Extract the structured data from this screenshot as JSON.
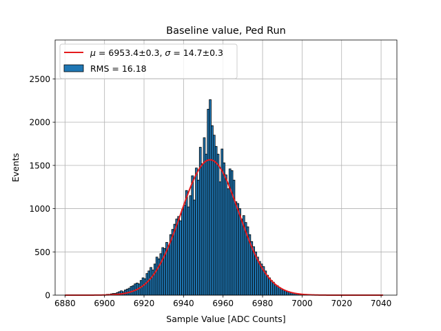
{
  "chart_data": {
    "type": "bar",
    "title": "Baseline value, Ped Run",
    "xlabel": "Sample Value [ADC Counts]",
    "ylabel": "Events",
    "xlim": [
      6875,
      7048
    ],
    "ylim": [
      0,
      2950
    ],
    "xticks": [
      6880,
      6900,
      6920,
      6940,
      6960,
      6980,
      7000,
      7020,
      7040
    ],
    "yticks": [
      0,
      500,
      1000,
      1500,
      2000,
      2500
    ],
    "grid": true,
    "legend_position": "top-left",
    "bin_width": 1,
    "histogram": {
      "name": "RMS = 16.18",
      "color": "#1f77b4",
      "edgecolor": "#000000",
      "bins": [
        [
          6899,
          5
        ],
        [
          6900,
          5
        ],
        [
          6901,
          10
        ],
        [
          6902,
          10
        ],
        [
          6903,
          15
        ],
        [
          6904,
          20
        ],
        [
          6905,
          20
        ],
        [
          6906,
          30
        ],
        [
          6907,
          40
        ],
        [
          6908,
          50
        ],
        [
          6909,
          40
        ],
        [
          6910,
          60
        ],
        [
          6911,
          70
        ],
        [
          6912,
          80
        ],
        [
          6913,
          100
        ],
        [
          6914,
          110
        ],
        [
          6915,
          130
        ],
        [
          6916,
          140
        ],
        [
          6917,
          130
        ],
        [
          6918,
          170
        ],
        [
          6919,
          200
        ],
        [
          6920,
          190
        ],
        [
          6921,
          250
        ],
        [
          6922,
          280
        ],
        [
          6923,
          320
        ],
        [
          6924,
          290
        ],
        [
          6925,
          360
        ],
        [
          6926,
          440
        ],
        [
          6927,
          420
        ],
        [
          6928,
          480
        ],
        [
          6929,
          550
        ],
        [
          6930,
          540
        ],
        [
          6931,
          610
        ],
        [
          6932,
          570
        ],
        [
          6933,
          700
        ],
        [
          6934,
          760
        ],
        [
          6935,
          820
        ],
        [
          6936,
          880
        ],
        [
          6937,
          910
        ],
        [
          6938,
          860
        ],
        [
          6939,
          990
        ],
        [
          6940,
          1040
        ],
        [
          6941,
          1210
        ],
        [
          6942,
          1020
        ],
        [
          6943,
          1150
        ],
        [
          6944,
          1380
        ],
        [
          6945,
          1100
        ],
        [
          6946,
          1470
        ],
        [
          6947,
          1330
        ],
        [
          6948,
          1710
        ],
        [
          6949,
          1520
        ],
        [
          6950,
          1820
        ],
        [
          6951,
          1630
        ],
        [
          6952,
          2150
        ],
        [
          6953,
          2260
        ],
        [
          6954,
          1960
        ],
        [
          6955,
          1850
        ],
        [
          6956,
          1720
        ],
        [
          6957,
          1630
        ],
        [
          6958,
          1310
        ],
        [
          6959,
          1690
        ],
        [
          6960,
          1530
        ],
        [
          6961,
          1390
        ],
        [
          6962,
          1230
        ],
        [
          6963,
          1460
        ],
        [
          6964,
          1440
        ],
        [
          6965,
          1330
        ],
        [
          6966,
          1080
        ],
        [
          6967,
          1060
        ],
        [
          6968,
          1000
        ],
        [
          6969,
          880
        ],
        [
          6970,
          920
        ],
        [
          6971,
          840
        ],
        [
          6972,
          790
        ],
        [
          6973,
          700
        ],
        [
          6974,
          620
        ],
        [
          6975,
          560
        ],
        [
          6976,
          500
        ],
        [
          6977,
          440
        ],
        [
          6978,
          390
        ],
        [
          6979,
          360
        ],
        [
          6980,
          330
        ],
        [
          6981,
          280
        ],
        [
          6982,
          230
        ],
        [
          6983,
          200
        ],
        [
          6984,
          170
        ],
        [
          6985,
          150
        ],
        [
          6986,
          120
        ],
        [
          6987,
          110
        ],
        [
          6988,
          90
        ],
        [
          6989,
          75
        ],
        [
          6990,
          60
        ],
        [
          6991,
          50
        ],
        [
          6992,
          40
        ],
        [
          6993,
          35
        ],
        [
          6994,
          30
        ],
        [
          6995,
          25
        ],
        [
          6996,
          20
        ],
        [
          6997,
          15
        ],
        [
          6998,
          12
        ],
        [
          6999,
          10
        ],
        [
          7000,
          8
        ],
        [
          7001,
          6
        ],
        [
          7002,
          5
        ],
        [
          7003,
          5
        ],
        [
          7004,
          4
        ],
        [
          7005,
          3
        ],
        [
          7006,
          3
        ],
        [
          7007,
          2
        ],
        [
          7008,
          2
        ]
      ]
    },
    "fit": {
      "type": "gaussian",
      "label": "$\\mu = 6953.4 \\pm 0.3$, $\\sigma = 14.7 \\pm 0.3$",
      "color": "#e41a1c",
      "mu": 6953.4,
      "sigma": 14.7,
      "amplitude": 1565,
      "x_range": [
        6880,
        7041
      ]
    },
    "legend": {
      "fit_label": {
        "mu_symbol": "μ",
        "mu_text": " = 6953.4±0.3, ",
        "sigma_symbol": "σ",
        "sigma_text": " = 14.7±0.3"
      },
      "hist_label": "RMS = 16.18"
    },
    "colors": {
      "bar_fill": "#1f77b4",
      "bar_edge": "#000000",
      "fit_line": "#e41a1c",
      "grid": "#b0b0b0"
    }
  }
}
